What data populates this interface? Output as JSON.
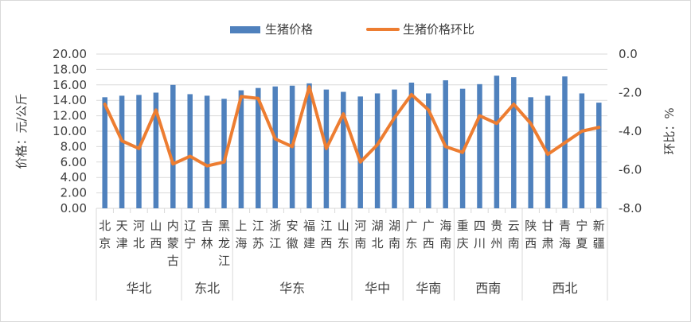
{
  "chart_data": {
    "type": "bar",
    "title": "",
    "ylabel": "价格：元/公斤",
    "y2label": "环比：%",
    "ylim": [
      0,
      20
    ],
    "y2lim": [
      -8,
      0
    ],
    "yticks": [
      "0.00",
      "2.00",
      "4.00",
      "6.00",
      "8.00",
      "10.00",
      "12.00",
      "14.00",
      "16.00",
      "18.00",
      "20.00"
    ],
    "y2ticks": [
      "-8.0",
      "-6.0",
      "-4.0",
      "-2.0",
      "0.0"
    ],
    "grid": true,
    "legend_position": "top",
    "categories": [
      {
        "label": [
          "北",
          "京"
        ]
      },
      {
        "label": [
          "天",
          "津"
        ]
      },
      {
        "label": [
          "河",
          "北"
        ]
      },
      {
        "label": [
          "山",
          "西"
        ]
      },
      {
        "label": [
          "内",
          "蒙",
          "古"
        ]
      },
      {
        "label": [
          "辽",
          "宁"
        ]
      },
      {
        "label": [
          "吉",
          "林"
        ]
      },
      {
        "label": [
          "黑",
          "龙",
          "江"
        ]
      },
      {
        "label": [
          "上",
          "海"
        ]
      },
      {
        "label": [
          "江",
          "苏"
        ]
      },
      {
        "label": [
          "浙",
          "江"
        ]
      },
      {
        "label": [
          "安",
          "徽"
        ]
      },
      {
        "label": [
          "福",
          "建"
        ]
      },
      {
        "label": [
          "江",
          "西"
        ]
      },
      {
        "label": [
          "山",
          "东"
        ]
      },
      {
        "label": [
          "河",
          "南"
        ]
      },
      {
        "label": [
          "湖",
          "北"
        ]
      },
      {
        "label": [
          "湖",
          "南"
        ]
      },
      {
        "label": [
          "广",
          "东"
        ]
      },
      {
        "label": [
          "广",
          "西"
        ]
      },
      {
        "label": [
          "海",
          "南"
        ]
      },
      {
        "label": [
          "重",
          "庆"
        ]
      },
      {
        "label": [
          "四",
          "川"
        ]
      },
      {
        "label": [
          "贵",
          "州"
        ]
      },
      {
        "label": [
          "云",
          "南"
        ]
      },
      {
        "label": [
          "陕",
          "西"
        ]
      },
      {
        "label": [
          "甘",
          "肃"
        ]
      },
      {
        "label": [
          "青",
          "海"
        ]
      },
      {
        "label": [
          "宁",
          "夏"
        ]
      },
      {
        "label": [
          "新",
          "疆"
        ]
      }
    ],
    "groups": [
      {
        "name": "华北",
        "count": 5
      },
      {
        "name": "东北",
        "count": 3
      },
      {
        "name": "华东",
        "count": 7
      },
      {
        "name": "华中",
        "count": 3
      },
      {
        "name": "华南",
        "count": 3
      },
      {
        "name": "西南",
        "count": 4
      },
      {
        "name": "西北",
        "count": 5
      }
    ],
    "series": [
      {
        "name": "生猪价格",
        "type": "bar",
        "axis": "left",
        "color": "#4f81bd",
        "values": [
          14.4,
          14.6,
          14.7,
          15.0,
          16.0,
          14.8,
          14.6,
          14.2,
          15.3,
          15.6,
          15.8,
          15.9,
          16.2,
          15.4,
          15.1,
          14.5,
          14.9,
          15.4,
          16.3,
          14.9,
          16.6,
          15.5,
          16.1,
          17.2,
          17.0,
          14.4,
          14.6,
          17.1,
          14.9,
          13.7
        ]
      },
      {
        "name": "生猪价格环比",
        "type": "line",
        "axis": "right",
        "color": "#ed7d31",
        "values": [
          -2.6,
          -4.5,
          -4.9,
          -2.9,
          -5.7,
          -5.3,
          -5.8,
          -5.6,
          -2.2,
          -2.3,
          -4.4,
          -4.8,
          -1.7,
          -4.9,
          -3.1,
          -5.6,
          -4.7,
          -3.3,
          -2.1,
          -2.9,
          -4.8,
          -5.1,
          -3.2,
          -3.6,
          -2.6,
          -3.6,
          -5.2,
          -4.6,
          -4.0,
          -3.8
        ]
      }
    ]
  }
}
